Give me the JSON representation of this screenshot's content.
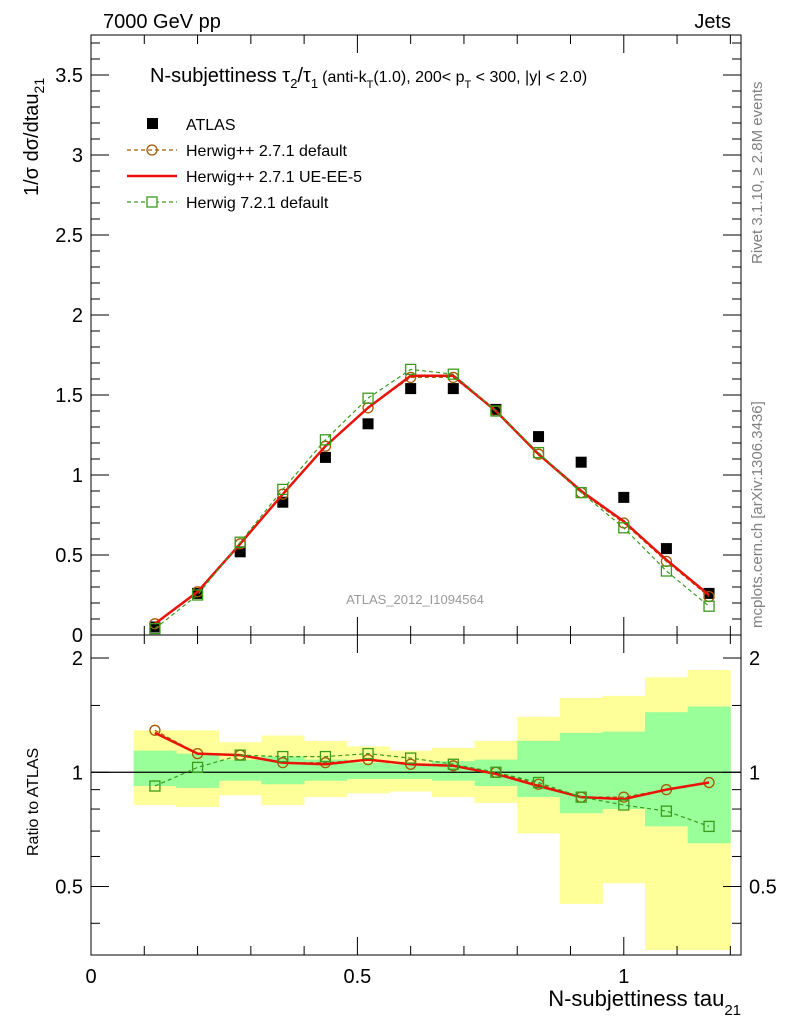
{
  "header": {
    "left": "7000 GeV pp",
    "right": "Jets"
  },
  "side_labels": {
    "rivet": "Rivet 3.1.10, ≥ 2.8M events",
    "mcplots": "mcplots.cern.ch [arXiv:1306.3436]"
  },
  "watermark": "ATLAS_2012_I1094564",
  "chart_data": [
    {
      "type": "scatter",
      "panel": "main",
      "title": "N-subjettiness τ₂/τ₁ (anti-k_T(1.0), 200< p_T < 300, |y| < 2.0)",
      "title_parts": {
        "main": "N-subjettiness",
        "tau": "τ",
        "sub2": "2",
        "slash": "/",
        "sub1": "1",
        "cond_a": "(anti-k",
        "cond_T": "T",
        "cond_b": "(1.0), 200< p",
        "cond_c": " < 300, |y| < 2.0)"
      },
      "ylabel": "1/σ dσ/dtau",
      "ylabel_sub": "21",
      "xlim": [
        0,
        1.22
      ],
      "ylim": [
        0,
        3.75
      ],
      "yticks": [
        0,
        0.5,
        1,
        1.5,
        2,
        2.5,
        3,
        3.5
      ],
      "ytick_labels": [
        "0",
        "0.5",
        "1",
        "1.5",
        "2",
        "2.5",
        "3",
        "3.5"
      ],
      "legend_position": "top-left",
      "series": [
        {
          "name": "ATLAS",
          "style": "data",
          "color": "#000000",
          "x": [
            0.12,
            0.2,
            0.28,
            0.36,
            0.44,
            0.52,
            0.6,
            0.68,
            0.76,
            0.84,
            0.92,
            1.0,
            1.08,
            1.16
          ],
          "y": [
            0.05,
            0.26,
            0.52,
            0.83,
            1.11,
            1.32,
            1.54,
            1.54,
            1.41,
            1.24,
            1.08,
            0.86,
            0.54,
            0.26
          ]
        },
        {
          "name": "Herwig++ 2.7.1 default",
          "style": "circle-dashed",
          "color": "#a55a00",
          "x": [
            0.12,
            0.2,
            0.28,
            0.36,
            0.44,
            0.52,
            0.6,
            0.68,
            0.76,
            0.84,
            0.92,
            1.0,
            1.08,
            1.16
          ],
          "y": [
            0.07,
            0.27,
            0.57,
            0.88,
            1.18,
            1.42,
            1.61,
            1.61,
            1.4,
            1.13,
            0.89,
            0.7,
            0.46,
            0.24
          ]
        },
        {
          "name": "Herwig++ 2.7.1 UE-EE-5",
          "style": "solid",
          "color": "#e8130a",
          "x": [
            0.12,
            0.2,
            0.28,
            0.36,
            0.44,
            0.52,
            0.6,
            0.68,
            0.76,
            0.84,
            0.92,
            1.0,
            1.08,
            1.16
          ],
          "y": [
            0.07,
            0.27,
            0.57,
            0.88,
            1.18,
            1.42,
            1.62,
            1.62,
            1.4,
            1.13,
            0.9,
            0.71,
            0.47,
            0.25
          ]
        },
        {
          "name": "Herwig 7.2.1 default",
          "style": "square-dashed",
          "color": "#3a9a1c",
          "x": [
            0.12,
            0.2,
            0.28,
            0.36,
            0.44,
            0.52,
            0.6,
            0.68,
            0.76,
            0.84,
            0.92,
            1.0,
            1.08,
            1.16
          ],
          "y": [
            0.04,
            0.25,
            0.58,
            0.91,
            1.22,
            1.48,
            1.66,
            1.63,
            1.4,
            1.14,
            0.89,
            0.67,
            0.4,
            0.18
          ]
        }
      ]
    },
    {
      "type": "line",
      "panel": "ratio",
      "ylabel": "Ratio to ATLAS",
      "xlabel": "N-subjettiness tau",
      "xlabel_sub": "21",
      "xlim": [
        0,
        1.22
      ],
      "ylim": [
        0.33,
        2.3
      ],
      "xticks": [
        0,
        0.5,
        1
      ],
      "xtick_labels": [
        "0",
        "0.5",
        "1"
      ],
      "yticks": [
        0.5,
        1,
        2
      ],
      "ytick_labels": [
        "0.5",
        "1",
        "2"
      ],
      "bins": [
        [
          0.08,
          0.16
        ],
        [
          0.16,
          0.24
        ],
        [
          0.24,
          0.32
        ],
        [
          0.32,
          0.4
        ],
        [
          0.4,
          0.48
        ],
        [
          0.48,
          0.56
        ],
        [
          0.56,
          0.64
        ],
        [
          0.64,
          0.72
        ],
        [
          0.72,
          0.8
        ],
        [
          0.8,
          0.88
        ],
        [
          0.88,
          0.96
        ],
        [
          0.96,
          1.04
        ],
        [
          1.04,
          1.12
        ],
        [
          1.12,
          1.2
        ]
      ],
      "band_outer_lo": [
        0.82,
        0.81,
        0.87,
        0.82,
        0.86,
        0.88,
        0.89,
        0.86,
        0.83,
        0.69,
        0.45,
        0.51,
        0.34,
        0.34
      ],
      "band_outer_hi": [
        1.29,
        1.29,
        1.2,
        1.25,
        1.21,
        1.17,
        1.14,
        1.16,
        1.21,
        1.4,
        1.57,
        1.59,
        1.78,
        1.86
      ],
      "band_inner_lo": [
        0.92,
        0.91,
        0.95,
        0.93,
        0.95,
        0.96,
        0.96,
        0.95,
        0.92,
        0.86,
        0.78,
        0.8,
        0.72,
        0.65
      ],
      "band_inner_hi": [
        1.14,
        1.12,
        1.08,
        1.1,
        1.08,
        1.06,
        1.05,
        1.07,
        1.08,
        1.21,
        1.27,
        1.28,
        1.44,
        1.49
      ],
      "series": [
        {
          "name": "Herwig++ 2.7.1 default",
          "style": "circle-dashed",
          "color": "#a55a00",
          "x": [
            0.12,
            0.2,
            0.28,
            0.36,
            0.44,
            0.52,
            0.6,
            0.68,
            0.76,
            0.84,
            0.92,
            1.0,
            1.08,
            1.16
          ],
          "y": [
            1.29,
            1.12,
            1.11,
            1.06,
            1.06,
            1.08,
            1.05,
            1.04,
            1.0,
            0.93,
            0.86,
            0.86,
            0.9,
            0.94
          ]
        },
        {
          "name": "Herwig++ 2.7.1 UE-EE-5",
          "style": "solid",
          "color": "#e8130a",
          "x": [
            0.12,
            0.2,
            0.28,
            0.36,
            0.44,
            0.52,
            0.6,
            0.68,
            0.76,
            0.84,
            0.92,
            1.0,
            1.08,
            1.16
          ],
          "y": [
            1.27,
            1.12,
            1.11,
            1.06,
            1.05,
            1.08,
            1.05,
            1.04,
            0.99,
            0.92,
            0.86,
            0.85,
            0.9,
            0.94
          ]
        },
        {
          "name": "Herwig 7.2.1 default",
          "style": "square-dashed",
          "color": "#3a9a1c",
          "x": [
            0.12,
            0.2,
            0.28,
            0.36,
            0.44,
            0.52,
            0.6,
            0.68,
            0.76,
            0.84,
            0.92,
            1.0,
            1.08,
            1.16
          ],
          "y": [
            0.92,
            1.03,
            1.11,
            1.1,
            1.1,
            1.12,
            1.09,
            1.05,
            1.0,
            0.94,
            0.86,
            0.82,
            0.79,
            0.72
          ]
        }
      ]
    }
  ],
  "colors": {
    "band_outer": "#ffff99",
    "band_inner": "#99ff99",
    "axis": "#000000",
    "side_text": "#7f7f7f",
    "watermark": "#999999"
  }
}
